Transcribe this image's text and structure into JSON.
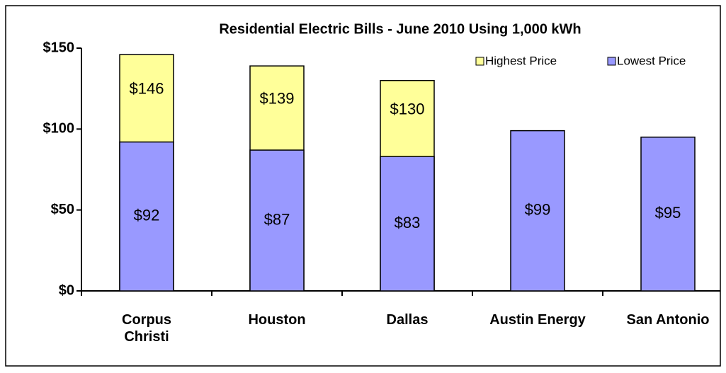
{
  "chart_data": {
    "type": "bar",
    "title": "Residential Electric Bills - June 2010 Using 1,000 kWh",
    "categories": [
      "Corpus\nChristi",
      "Houston",
      "Dallas",
      "Austin Energy",
      "San Antonio"
    ],
    "series": [
      {
        "name": "Highest Price",
        "color": "#ffff99",
        "values": [
          146,
          139,
          130,
          null,
          null
        ],
        "value_labels": [
          "$146",
          "$139",
          "$130",
          null,
          null
        ]
      },
      {
        "name": "Lowest Price",
        "color": "#9999ff",
        "values": [
          92,
          87,
          83,
          99,
          95
        ],
        "value_labels": [
          "$92",
          "$87",
          "$83",
          "$99",
          "$95"
        ]
      }
    ],
    "ylim": [
      0,
      150
    ],
    "yticks": [
      {
        "value": 0,
        "label": "$0"
      },
      {
        "value": 50,
        "label": "$50"
      },
      {
        "value": 100,
        "label": "$100"
      },
      {
        "value": 150,
        "label": "$150"
      }
    ],
    "grid": false,
    "legend": "top-right",
    "overlap": true
  }
}
